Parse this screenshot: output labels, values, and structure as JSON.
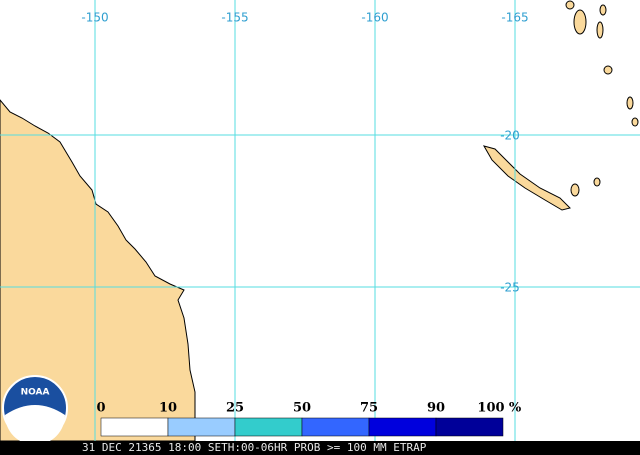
{
  "map": {
    "lon_labels": [
      "-150",
      "-155",
      "-160",
      "-165"
    ],
    "lat_labels": [
      "-20",
      "-25"
    ],
    "logo": "NOAA",
    "legend": {
      "labels": [
        0,
        10,
        25,
        50,
        75,
        90,
        100
      ],
      "unit": "%",
      "colors": [
        "#ffffff",
        "#99ccff",
        "#33cccc",
        "#3366ff",
        "#0000dd",
        "#000099"
      ]
    },
    "caption": "31 DEC 21365 18:00 SETH:00-06HR PROB >= 100 MM ETRAP"
  }
}
